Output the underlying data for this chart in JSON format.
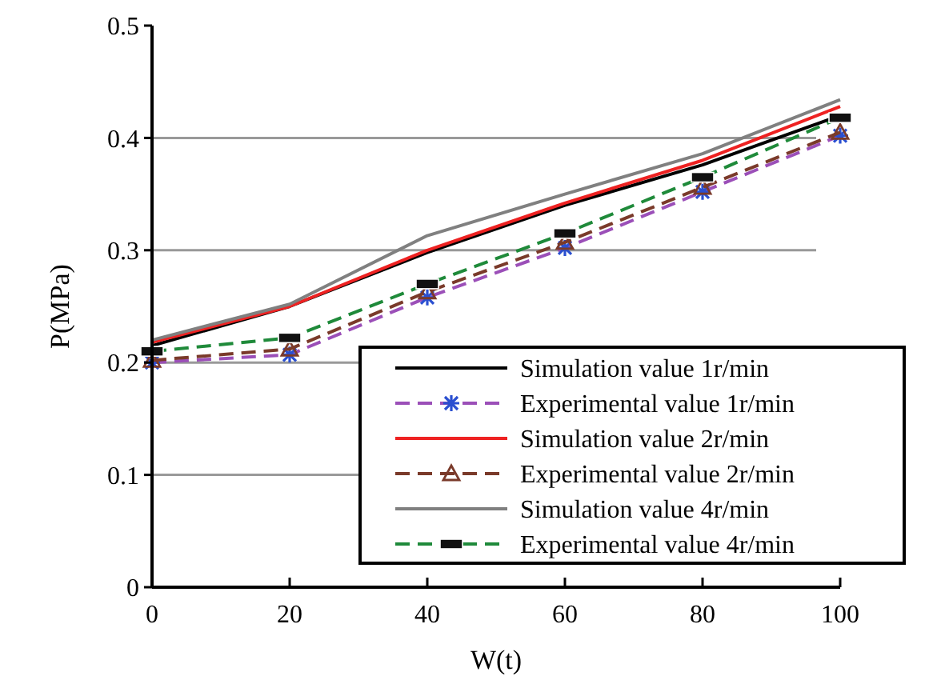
{
  "chart_data": {
    "type": "line",
    "xlabel": "W(t)",
    "ylabel": "P(MPa)",
    "x": [
      0,
      20,
      40,
      60,
      80,
      100
    ],
    "xlim": [
      0,
      100
    ],
    "xticks": [
      0,
      20,
      40,
      60,
      80,
      100
    ],
    "ylim": [
      0,
      0.5
    ],
    "yticks": [
      0,
      0.1,
      0.2,
      0.3,
      0.4,
      0.5
    ],
    "grid": "y",
    "legend": "bottom right",
    "series": [
      {
        "name": "Simulation value 1r/min",
        "color": "#000000",
        "values": [
          0.215,
          0.25,
          0.298,
          0.34,
          0.376,
          0.42
        ],
        "marker": "none",
        "line_style": "solid"
      },
      {
        "name": "Experimental value 1r/min",
        "color": "#9b4fb8",
        "values": [
          0.2,
          0.207,
          0.258,
          0.302,
          0.352,
          0.402
        ],
        "marker": "cross",
        "line_style": "dashed"
      },
      {
        "name": "Simulation value 2r/min",
        "color": "#ee2222",
        "values": [
          0.218,
          0.25,
          0.3,
          0.342,
          0.38,
          0.428
        ],
        "marker": "none",
        "line_style": "solid"
      },
      {
        "name": "Experimental value 2r/min",
        "color": "#7a3a2a",
        "values": [
          0.202,
          0.212,
          0.263,
          0.307,
          0.356,
          0.405
        ],
        "marker": "triangle",
        "line_style": "dashed"
      },
      {
        "name": "Simulation value 4r/min",
        "color": "#808080",
        "values": [
          0.22,
          0.252,
          0.313,
          0.35,
          0.386,
          0.434
        ],
        "marker": "none",
        "line_style": "solid"
      },
      {
        "name": "Experimental value 4r/min",
        "color": "#1f8a3a",
        "values": [
          0.21,
          0.222,
          0.27,
          0.315,
          0.365,
          0.418
        ],
        "marker": "square",
        "line_style": "dashed"
      }
    ]
  }
}
